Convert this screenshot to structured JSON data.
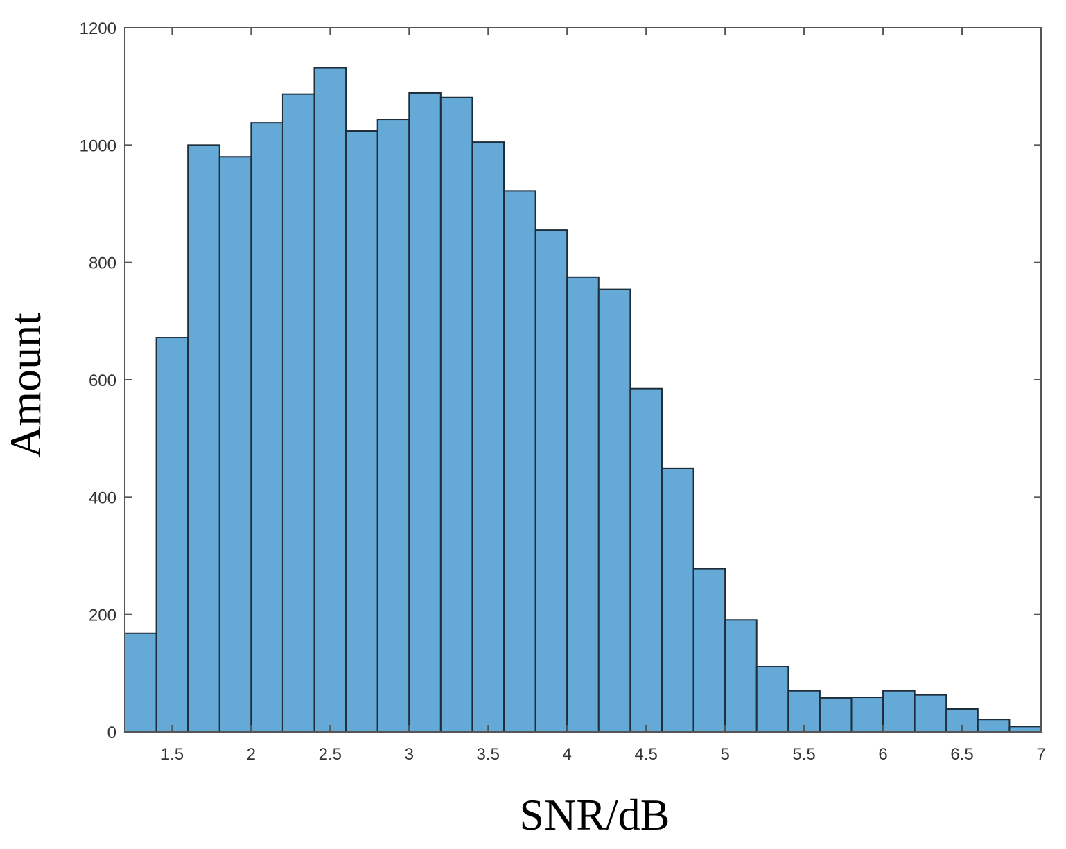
{
  "chart_data": {
    "type": "bar",
    "xlabel": "SNR/dB",
    "ylabel": "Amount",
    "xlim": [
      1.2,
      7.0
    ],
    "ylim": [
      0,
      1200
    ],
    "x_ticks": [
      "1.5",
      "2",
      "2.5",
      "3",
      "3.5",
      "4",
      "4.5",
      "5",
      "5.5",
      "6",
      "6.5",
      "7"
    ],
    "y_ticks": [
      "0",
      "200",
      "400",
      "600",
      "800",
      "1000",
      "1200"
    ],
    "bin_width": 0.2,
    "bin_edges": [
      1.2,
      1.4,
      1.6,
      1.8,
      2.0,
      2.2,
      2.4,
      2.6,
      2.8,
      3.0,
      3.2,
      3.4,
      3.6,
      3.8,
      4.0,
      4.2,
      4.4,
      4.6,
      4.8,
      5.0,
      5.2,
      5.4,
      5.6,
      5.8,
      6.0,
      6.2,
      6.4,
      6.6,
      6.8,
      7.0
    ],
    "values": [
      168,
      672,
      1000,
      980,
      1038,
      1087,
      1132,
      1024,
      1044,
      1089,
      1081,
      1005,
      922,
      855,
      775,
      754,
      585,
      449,
      278,
      191,
      111,
      70,
      58,
      59,
      70,
      63,
      39,
      21,
      9
    ],
    "grid": false,
    "bar_color": "#65a9d7",
    "edge_color": "#1f2d3a"
  }
}
